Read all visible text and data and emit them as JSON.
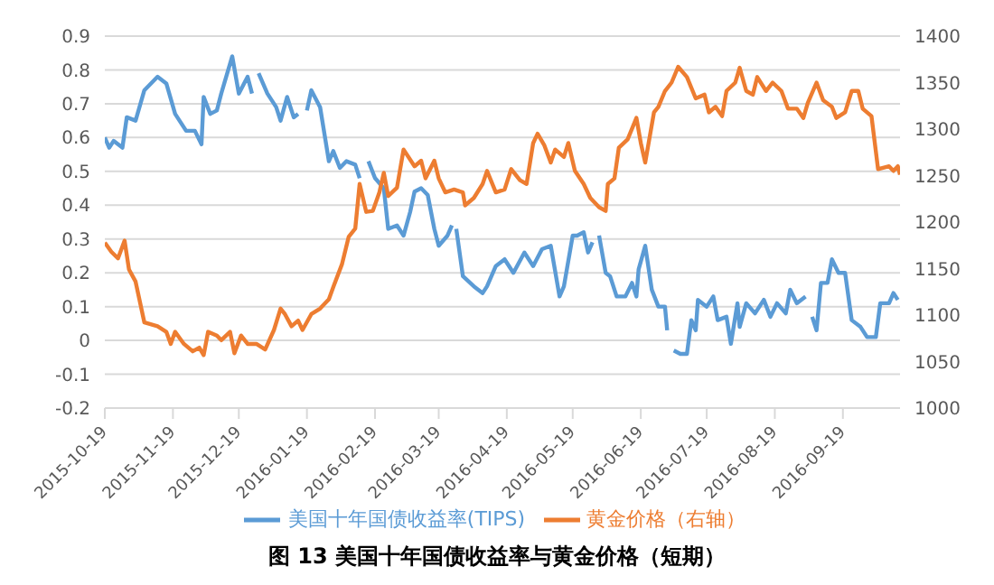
{
  "chart_data": {
    "type": "line",
    "title": "图 13 美国十年国债收益率与黄金价格（短期）",
    "xlim": [
      "2015-10-19",
      "2016-10-15"
    ],
    "xticks": [
      "2015-10-19",
      "2015-11-19",
      "2015-12-19",
      "2016-01-19",
      "2016-02-19",
      "2016-03-19",
      "2016-04-19",
      "2016-05-19",
      "2016-06-19",
      "2016-07-19",
      "2016-08-19",
      "2016-09-19"
    ],
    "ylim": [
      -0.2,
      0.9
    ],
    "yticks": [
      -0.2,
      -0.1,
      0,
      0.1,
      0.2,
      0.3,
      0.4,
      0.5,
      0.6,
      0.7,
      0.8,
      0.9
    ],
    "y2lim": [
      1000,
      1400
    ],
    "y2ticks": [
      1000,
      1050,
      1100,
      1150,
      1200,
      1250,
      1300,
      1350,
      1400
    ],
    "grid": "y",
    "legend": "bottom",
    "marker": "none",
    "line_style": "solid",
    "series": [
      {
        "name": "美国十年国债收益率(TIPS)",
        "color": "#5b9bd5",
        "x": [
          "2015-10-19",
          "2015-10-21",
          "2015-10-23",
          "2015-10-27",
          "2015-10-29",
          "2015-11-02",
          "2015-11-06",
          "2015-11-12",
          "2015-11-16",
          "2015-11-20",
          "2015-11-25",
          "2015-11-29",
          "2015-12-02",
          "2015-12-03",
          "2015-12-06",
          "2015-12-09",
          "2015-12-11",
          "2015-12-16",
          "2015-12-19",
          "2015-12-23",
          "2015-12-25",
          "2015-12-27",
          "2015-12-28",
          "2016-01-01",
          "2016-01-05",
          "2016-01-07",
          "2016-01-10",
          "2016-01-13",
          "2016-01-15",
          "2016-01-17",
          "2016-01-19",
          "2016-01-21",
          "2016-01-25",
          "2016-01-29",
          "2016-01-31",
          "2016-02-03",
          "2016-02-06",
          "2016-02-10",
          "2016-02-12",
          "2016-02-14",
          "2016-02-16",
          "2016-02-19",
          "2016-02-23",
          "2016-02-25",
          "2016-02-29",
          "2016-03-03",
          "2016-03-06",
          "2016-03-08",
          "2016-03-11",
          "2016-03-14",
          "2016-03-17",
          "2016-03-19",
          "2016-03-23",
          "2016-03-25",
          "2016-03-26",
          "2016-03-27",
          "2016-03-30",
          "2016-04-04",
          "2016-04-08",
          "2016-04-10",
          "2016-04-14",
          "2016-04-18",
          "2016-04-22",
          "2016-04-27",
          "2016-05-01",
          "2016-05-05",
          "2016-05-09",
          "2016-05-13",
          "2016-05-15",
          "2016-05-19",
          "2016-05-21",
          "2016-05-24",
          "2016-05-26",
          "2016-05-28",
          "2016-05-29",
          "2016-05-31",
          "2016-06-03",
          "2016-06-05",
          "2016-06-08",
          "2016-06-12",
          "2016-06-15",
          "2016-06-17",
          "2016-06-18",
          "2016-06-21",
          "2016-06-24",
          "2016-06-27",
          "2016-06-30",
          "2016-07-01",
          "2016-07-02",
          "2016-07-04",
          "2016-07-07",
          "2016-07-10",
          "2016-07-12",
          "2016-07-14",
          "2016-07-15",
          "2016-07-19",
          "2016-07-22",
          "2016-07-24",
          "2016-07-28",
          "2016-07-30",
          "2016-08-02",
          "2016-08-03",
          "2016-08-06",
          "2016-08-10",
          "2016-08-14",
          "2016-08-17",
          "2016-08-20",
          "2016-08-24",
          "2016-08-26",
          "2016-08-29",
          "2016-09-02",
          "2016-09-04",
          "2016-09-05",
          "2016-09-07",
          "2016-09-09",
          "2016-09-12",
          "2016-09-14",
          "2016-09-17",
          "2016-09-20",
          "2016-09-23",
          "2016-09-27",
          "2016-09-30",
          "2016-10-04",
          "2016-10-06",
          "2016-10-10",
          "2016-10-12",
          "2016-10-14"
        ],
        "values": [
          0.6,
          0.57,
          0.59,
          0.57,
          0.66,
          0.65,
          0.74,
          0.78,
          0.76,
          0.67,
          0.62,
          0.62,
          0.58,
          0.72,
          0.67,
          0.68,
          0.73,
          0.84,
          0.73,
          0.78,
          0.73,
          null,
          0.79,
          0.73,
          0.69,
          0.65,
          0.72,
          0.66,
          0.67,
          null,
          0.68,
          0.74,
          0.69,
          0.53,
          0.56,
          0.51,
          0.53,
          0.52,
          0.48,
          null,
          0.53,
          0.48,
          0.45,
          0.33,
          0.34,
          0.31,
          0.38,
          0.44,
          0.45,
          0.43,
          0.33,
          0.28,
          0.31,
          0.34,
          null,
          0.33,
          0.19,
          0.16,
          0.14,
          0.16,
          0.22,
          0.24,
          0.2,
          0.26,
          0.22,
          0.27,
          0.28,
          0.13,
          0.16,
          0.31,
          0.31,
          0.32,
          0.26,
          0.29,
          null,
          0.31,
          0.2,
          0.19,
          0.13,
          0.13,
          0.17,
          0.13,
          0.21,
          0.28,
          0.15,
          0.1,
          0.1,
          0.03,
          null,
          -0.03,
          -0.04,
          -0.04,
          0.06,
          0.03,
          0.12,
          0.1,
          0.13,
          0.06,
          0.07,
          -0.01,
          0.11,
          0.04,
          0.11,
          0.08,
          0.12,
          0.07,
          0.11,
          0.08,
          0.15,
          0.11,
          0.13,
          null,
          0.07,
          0.03,
          0.17,
          0.17,
          0.24,
          0.2,
          0.2,
          0.06,
          0.04,
          0.01,
          0.01,
          0.11,
          0.11,
          0.14,
          0.12
        ]
      },
      {
        "name": "黄金价格（右轴）",
        "color": "#ed7d31",
        "axis": "y2",
        "x": [
          "2015-10-19",
          "2015-10-22",
          "2015-10-25",
          "2015-10-28",
          "2015-10-30",
          "2015-11-02",
          "2015-11-06",
          "2015-11-12",
          "2015-11-16",
          "2015-11-18",
          "2015-11-20",
          "2015-11-24",
          "2015-11-28",
          "2015-12-01",
          "2015-12-03",
          "2015-12-05",
          "2015-12-09",
          "2015-12-11",
          "2015-12-15",
          "2015-12-17",
          "2015-12-20",
          "2015-12-23",
          "2015-12-27",
          "2015-12-31",
          "2016-01-04",
          "2016-01-07",
          "2016-01-09",
          "2016-01-12",
          "2016-01-15",
          "2016-01-17",
          "2016-01-21",
          "2016-01-25",
          "2016-01-29",
          "2016-01-31",
          "2016-02-04",
          "2016-02-07",
          "2016-02-10",
          "2016-02-12",
          "2016-02-15",
          "2016-02-18",
          "2016-02-21",
          "2016-02-23",
          "2016-02-25",
          "2016-02-29",
          "2016-03-03",
          "2016-03-08",
          "2016-03-11",
          "2016-03-13",
          "2016-03-17",
          "2016-03-19",
          "2016-03-22",
          "2016-03-26",
          "2016-03-30",
          "2016-03-31",
          "2016-04-04",
          "2016-04-08",
          "2016-04-10",
          "2016-04-14",
          "2016-04-18",
          "2016-04-21",
          "2016-04-25",
          "2016-04-28",
          "2016-05-01",
          "2016-05-03",
          "2016-05-06",
          "2016-05-09",
          "2016-05-11",
          "2016-05-15",
          "2016-05-17",
          "2016-05-20",
          "2016-05-24",
          "2016-05-27",
          "2016-05-31",
          "2016-06-03",
          "2016-06-04",
          "2016-06-07",
          "2016-06-09",
          "2016-06-13",
          "2016-06-17",
          "2016-06-19",
          "2016-06-21",
          "2016-06-25",
          "2016-06-27",
          "2016-06-30",
          "2016-07-03",
          "2016-07-06",
          "2016-07-10",
          "2016-07-14",
          "2016-07-18",
          "2016-07-20",
          "2016-07-23",
          "2016-07-26",
          "2016-07-28",
          "2016-08-01",
          "2016-08-03",
          "2016-08-06",
          "2016-08-09",
          "2016-08-11",
          "2016-08-15",
          "2016-08-18",
          "2016-08-22",
          "2016-08-25",
          "2016-08-29",
          "2016-09-01",
          "2016-09-03",
          "2016-09-07",
          "2016-09-10",
          "2016-09-14",
          "2016-09-16",
          "2016-09-20",
          "2016-09-23",
          "2016-09-26",
          "2016-09-28",
          "2016-10-02",
          "2016-10-05",
          "2016-10-10",
          "2016-10-12",
          "2016-10-14",
          "2016-10-15"
        ],
        "values": [
          1178,
          1168,
          1161,
          1180,
          1149,
          1136,
          1092,
          1088,
          1082,
          1069,
          1082,
          1069,
          1061,
          1065,
          1057,
          1082,
          1078,
          1073,
          1082,
          1059,
          1078,
          1069,
          1069,
          1063,
          1084,
          1107,
          1101,
          1088,
          1094,
          1084,
          1101,
          1107,
          1117,
          1130,
          1155,
          1184,
          1193,
          1241,
          1211,
          1212,
          1232,
          1253,
          1228,
          1237,
          1278,
          1260,
          1266,
          1247,
          1266,
          1247,
          1232,
          1235,
          1232,
          1218,
          1226,
          1241,
          1255,
          1232,
          1235,
          1257,
          1245,
          1241,
          1285,
          1295,
          1283,
          1264,
          1278,
          1270,
          1285,
          1255,
          1241,
          1226,
          1216,
          1212,
          1241,
          1247,
          1280,
          1289,
          1312,
          1285,
          1264,
          1318,
          1324,
          1341,
          1350,
          1367,
          1356,
          1333,
          1337,
          1318,
          1324,
          1314,
          1341,
          1350,
          1366,
          1341,
          1337,
          1356,
          1341,
          1350,
          1341,
          1322,
          1322,
          1312,
          1328,
          1350,
          1331,
          1324,
          1312,
          1318,
          1341,
          1341,
          1322,
          1314,
          1257,
          1260,
          1255,
          1260,
          1251
        ]
      }
    ]
  }
}
